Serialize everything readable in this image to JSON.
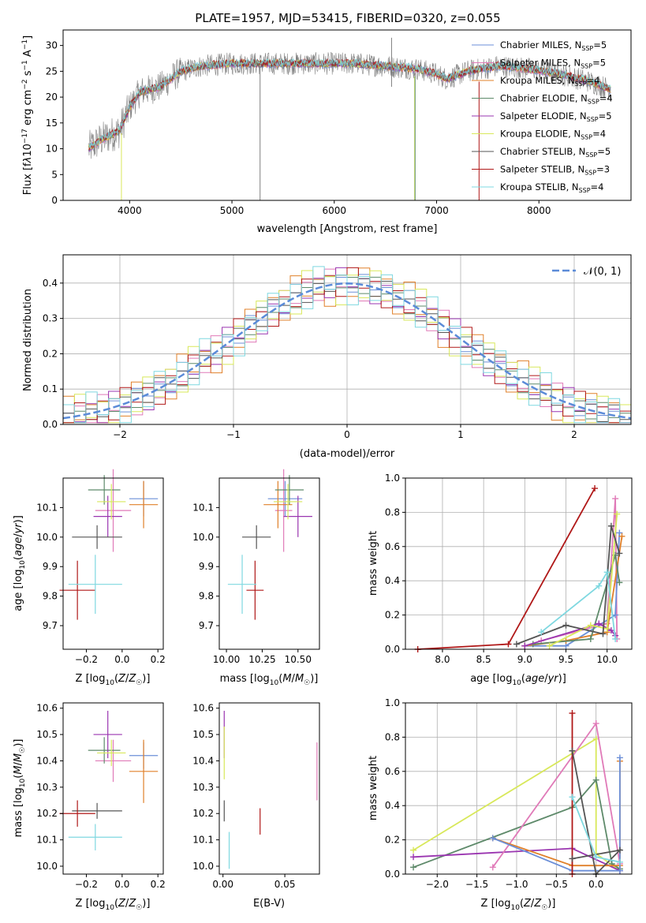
{
  "title": "PLATE=1957, MJD=53415, FIBERID=0320, z=0.055",
  "colors": {
    "chabrier_miles": "#6b8fd8",
    "salpeter_miles": "#e07ab8",
    "kroupa_miles": "#e0802a",
    "chabrier_elodie": "#5e8a6a",
    "salpeter_elodie": "#9a35b0",
    "kroupa_elodie": "#d8e85a",
    "chabrier_stelib": "#555555",
    "salpeter_stelib": "#b01818",
    "kroupa_stelib": "#7fd8e0"
  },
  "chart_data": [
    {
      "id": "spectrum",
      "type": "line",
      "xlabel": "wavelength [Angstrom, rest frame]",
      "ylabel": "Flux [f_λ10^-17 erg cm^-2 s^-1 A^-1]",
      "xlim": [
        3350,
        8900
      ],
      "ylim": [
        0,
        33
      ],
      "xticks": [
        4000,
        5000,
        6000,
        7000,
        8000
      ],
      "yticks": [
        0,
        5,
        10,
        15,
        20,
        25,
        30
      ],
      "legend_position": "top-right",
      "data_color": "#808080",
      "continuum": {
        "x": [
          3600,
          3700,
          3800,
          3900,
          4000,
          4100,
          4200,
          4300,
          4400,
          4500,
          4700,
          5000,
          5300,
          5600,
          5900,
          6200,
          6500,
          6800,
          7000,
          7100,
          7300,
          7600,
          7900,
          8200,
          8500,
          8700
        ],
        "y": [
          10,
          11.5,
          12.5,
          13.5,
          18,
          21,
          21.5,
          22,
          23.5,
          25,
          26,
          26.5,
          26.5,
          26.5,
          26.5,
          26.5,
          26,
          25.5,
          24.5,
          23.5,
          25,
          26,
          25.5,
          24.5,
          23,
          21.5
        ]
      },
      "series": [
        {
          "name": "Chabrier MILES, N_SSP=5",
          "label_main": "Chabrier MILES, N",
          "ssp": "5",
          "color": "#6b8fd8"
        },
        {
          "name": "Salpeter MILES, N_SSP=5",
          "label_main": "Salpeter MILES, N",
          "ssp": "5",
          "color": "#e07ab8"
        },
        {
          "name": "Kroupa MILES, N_SSP=4",
          "label_main": "Kroupa MILES, N",
          "ssp": "4",
          "color": "#e0802a"
        },
        {
          "name": "Chabrier ELODIE, N_SSP=4",
          "label_main": "Chabrier ELODIE, N",
          "ssp": "4",
          "color": "#5e8a6a"
        },
        {
          "name": "Salpeter ELODIE, N_SSP=5",
          "label_main": "Salpeter ELODIE, N",
          "ssp": "5",
          "color": "#9a35b0"
        },
        {
          "name": "Kroupa ELODIE, N_SSP=4",
          "label_main": "Kroupa ELODIE, N",
          "ssp": "4",
          "color": "#d8e85a"
        },
        {
          "name": "Chabrier STELIB, N_SSP=5",
          "label_main": "Chabrier STELIB, N",
          "ssp": "5",
          "color": "#555555"
        },
        {
          "name": "Salpeter STELIB, N_SSP=3",
          "label_main": "Salpeter STELIB, N",
          "ssp": "3",
          "color": "#b01818"
        },
        {
          "name": "Kroupa STELIB, N_SSP=4",
          "label_main": "Kroupa STELIB, N",
          "ssp": "4",
          "color": "#7fd8e0"
        }
      ],
      "spikes": [
        {
          "x": 3920,
          "y0": 0,
          "y1": 13,
          "color": "#d8e85a"
        },
        {
          "x": 5275,
          "y0": 0,
          "y1": 26,
          "color": "#808080"
        },
        {
          "x": 6560,
          "y0": 22,
          "y1": 31.5,
          "color": "#808080"
        },
        {
          "x": 6785,
          "y0": 0,
          "y1": 24,
          "color": "#d8e85a"
        },
        {
          "x": 6790,
          "y0": 0,
          "y1": 24,
          "color": "#5e8a6a"
        },
        {
          "x": 7415,
          "y0": 0,
          "y1": 23,
          "color": "#b01818"
        }
      ]
    },
    {
      "id": "residuals",
      "type": "bar",
      "xlabel": "(data-model)/error",
      "ylabel": "Normed distribution",
      "xlim": [
        -2.5,
        2.5
      ],
      "ylim": [
        0,
        0.48
      ],
      "xticks": [
        -2,
        -1,
        0,
        1,
        2
      ],
      "yticks": [
        0.0,
        0.1,
        0.2,
        0.3,
        0.4
      ],
      "grid": true,
      "bin_width": 0.1,
      "bin_start": -2.5,
      "legend_label": "𝒩(0, 1)",
      "legend_position": "top-right",
      "normal_color": "#5b8bd8",
      "hist_values": [
        0.03,
        0.035,
        0.045,
        0.05,
        0.055,
        0.06,
        0.07,
        0.075,
        0.085,
        0.09,
        0.1,
        0.11,
        0.12,
        0.13,
        0.145,
        0.16,
        0.175,
        0.19,
        0.205,
        0.22,
        0.24,
        0.255,
        0.27,
        0.285,
        0.3,
        0.315,
        0.33,
        0.345,
        0.355,
        0.365,
        0.375,
        0.385,
        0.39,
        0.395,
        0.4,
        0.4,
        0.4,
        0.395,
        0.39,
        0.385,
        0.375,
        0.365,
        0.355,
        0.34,
        0.33,
        0.315,
        0.3,
        0.285,
        0.27,
        0.255,
        0.24,
        0.22,
        0.205,
        0.19,
        0.175,
        0.16,
        0.145,
        0.13,
        0.12,
        0.11,
        0.1,
        0.09,
        0.08,
        0.07,
        0.065,
        0.055,
        0.05,
        0.045,
        0.04,
        0.035,
        0.03,
        0.028,
        0.025,
        0.022,
        0.02,
        0.018,
        0.016,
        0.014,
        0.012,
        0.01
      ],
      "hist_scatter": [
        0.02,
        -0.03,
        0.04,
        -0.02,
        0.03,
        -0.04,
        0.05,
        -0.01,
        0.02,
        -0.05
      ]
    },
    {
      "id": "age-vs-Z",
      "type": "scatter",
      "xlabel": "Z [log10(Z/Z☉)]",
      "ylabel": "age [log10(age/yr)]",
      "xlim": [
        -0.33,
        0.23
      ],
      "ylim": [
        9.62,
        10.2
      ],
      "xticks": [
        -0.2,
        0.0,
        0.2
      ],
      "xticklabels": [
        "−0.2",
        "0.0",
        "0.2"
      ],
      "yticks": [
        9.7,
        9.8,
        9.9,
        10.0,
        10.1
      ],
      "points": [
        {
          "color": "#6b8fd8",
          "x": 0.12,
          "y": 10.13,
          "xerr": 0.08,
          "yerr": 0.06
        },
        {
          "color": "#e07ab8",
          "x": -0.05,
          "y": 10.09,
          "xerr": 0.1,
          "yerr": 0.14
        },
        {
          "color": "#e0802a",
          "x": 0.12,
          "y": 10.11,
          "xerr": 0.08,
          "yerr": 0.08
        },
        {
          "color": "#5e8a6a",
          "x": -0.1,
          "y": 10.16,
          "xerr": 0.09,
          "yerr": 0.05
        },
        {
          "color": "#9a35b0",
          "x": -0.08,
          "y": 10.07,
          "xerr": 0.08,
          "yerr": 0.07
        },
        {
          "color": "#d8e85a",
          "x": -0.06,
          "y": 10.12,
          "xerr": 0.08,
          "yerr": 0.06
        },
        {
          "color": "#555555",
          "x": -0.14,
          "y": 10.0,
          "xerr": 0.14,
          "yerr": 0.04
        },
        {
          "color": "#b01818",
          "x": -0.25,
          "y": 9.82,
          "xerr": 0.1,
          "yerr": 0.1
        },
        {
          "color": "#7fd8e0",
          "x": -0.15,
          "y": 9.84,
          "xerr": 0.15,
          "yerr": 0.1
        }
      ]
    },
    {
      "id": "age-vs-mass",
      "type": "scatter",
      "xlabel": "mass [log10(M/M☉)]",
      "ylabel": "",
      "xlim": [
        9.95,
        10.65
      ],
      "ylim": [
        9.62,
        10.2
      ],
      "xticks": [
        10.0,
        10.25,
        10.5
      ],
      "xticklabels": [
        "10.00",
        "10.25",
        "10.50"
      ],
      "yticks": [
        9.7,
        9.8,
        9.9,
        10.0,
        10.1
      ],
      "points": [
        {
          "color": "#6b8fd8",
          "x": 10.41,
          "y": 10.13,
          "xerr": 0.12,
          "yerr": 0.06
        },
        {
          "color": "#e07ab8",
          "x": 10.4,
          "y": 10.09,
          "xerr": 0.06,
          "yerr": 0.14
        },
        {
          "color": "#e0802a",
          "x": 10.36,
          "y": 10.11,
          "xerr": 0.1,
          "yerr": 0.08
        },
        {
          "color": "#5e8a6a",
          "x": 10.44,
          "y": 10.16,
          "xerr": 0.1,
          "yerr": 0.05
        },
        {
          "color": "#9a35b0",
          "x": 10.5,
          "y": 10.07,
          "xerr": 0.1,
          "yerr": 0.07
        },
        {
          "color": "#d8e85a",
          "x": 10.43,
          "y": 10.12,
          "xerr": 0.1,
          "yerr": 0.06
        },
        {
          "color": "#555555",
          "x": 10.21,
          "y": 10.0,
          "xerr": 0.1,
          "yerr": 0.04
        },
        {
          "color": "#b01818",
          "x": 10.2,
          "y": 9.82,
          "xerr": 0.06,
          "yerr": 0.1
        },
        {
          "color": "#7fd8e0",
          "x": 10.11,
          "y": 9.84,
          "xerr": 0.1,
          "yerr": 0.1
        }
      ]
    },
    {
      "id": "mass-weight-vs-age",
      "type": "line",
      "xlabel": "age [log10(age/yr)]",
      "ylabel": "mass weight",
      "xlim": [
        7.55,
        10.3
      ],
      "ylim": [
        0,
        1.0
      ],
      "xticks": [
        8.0,
        8.5,
        9.0,
        9.5,
        10.0
      ],
      "xticklabels": [
        "8.0",
        "8.5",
        "9.0",
        "9.5",
        "10.0"
      ],
      "yticks": [
        0.0,
        0.2,
        0.4,
        0.6,
        0.8,
        1.0
      ],
      "grid": true,
      "series": [
        {
          "color": "#b01818",
          "x": [
            7.7,
            8.8,
            9.85
          ],
          "y": [
            0.0,
            0.03,
            0.94
          ]
        },
        {
          "color": "#e07ab8",
          "x": [
            9.2,
            10.0,
            10.1,
            10.12
          ],
          "y": [
            0.05,
            0.15,
            0.88,
            0.06
          ]
        },
        {
          "color": "#6b8fd8",
          "x": [
            9.0,
            9.5,
            10.1,
            10.15
          ],
          "y": [
            0.02,
            0.02,
            0.2,
            0.68
          ]
        },
        {
          "color": "#e0802a",
          "x": [
            9.0,
            9.5,
            10.0,
            10.18
          ],
          "y": [
            0.02,
            0.05,
            0.1,
            0.66
          ]
        },
        {
          "color": "#5e8a6a",
          "x": [
            9.1,
            9.8,
            10.1,
            10.15
          ],
          "y": [
            0.03,
            0.06,
            0.55,
            0.39
          ]
        },
        {
          "color": "#9a35b0",
          "x": [
            9.0,
            9.9,
            10.05,
            10.1
          ],
          "y": [
            0.02,
            0.15,
            0.11,
            0.08
          ]
        },
        {
          "color": "#d8e85a",
          "x": [
            9.3,
            9.8,
            10.0,
            10.12
          ],
          "y": [
            0.02,
            0.14,
            0.12,
            0.79
          ]
        },
        {
          "color": "#555555",
          "x": [
            8.9,
            9.5,
            9.95,
            10.05,
            10.15
          ],
          "y": [
            0.03,
            0.14,
            0.09,
            0.72,
            0.56
          ]
        },
        {
          "color": "#7fd8e0",
          "x": [
            9.2,
            9.9,
            10.0,
            10.1
          ],
          "y": [
            0.1,
            0.37,
            0.45,
            0.06
          ]
        }
      ]
    },
    {
      "id": "mass-vs-Z",
      "type": "scatter",
      "xlabel": "Z [log10(Z/Z☉)]",
      "ylabel": "mass [log10(M/M☉)]",
      "xlim": [
        -0.33,
        0.23
      ],
      "ylim": [
        9.97,
        10.62
      ],
      "xticks": [
        -0.2,
        0.0,
        0.2
      ],
      "xticklabels": [
        "−0.2",
        "0.0",
        "0.2"
      ],
      "yticks": [
        10.0,
        10.1,
        10.2,
        10.3,
        10.4,
        10.5,
        10.6
      ],
      "points": [
        {
          "color": "#6b8fd8",
          "x": 0.12,
          "y": 10.42,
          "xerr": 0.08,
          "yerr": 0.05
        },
        {
          "color": "#e07ab8",
          "x": -0.05,
          "y": 10.4,
          "xerr": 0.1,
          "yerr": 0.08
        },
        {
          "color": "#e0802a",
          "x": 0.12,
          "y": 10.36,
          "xerr": 0.08,
          "yerr": 0.12
        },
        {
          "color": "#5e8a6a",
          "x": -0.1,
          "y": 10.44,
          "xerr": 0.09,
          "yerr": 0.05
        },
        {
          "color": "#9a35b0",
          "x": -0.08,
          "y": 10.5,
          "xerr": 0.08,
          "yerr": 0.09
        },
        {
          "color": "#d8e85a",
          "x": -0.06,
          "y": 10.43,
          "xerr": 0.08,
          "yerr": 0.05
        },
        {
          "color": "#555555",
          "x": -0.14,
          "y": 10.21,
          "xerr": 0.14,
          "yerr": 0.03
        },
        {
          "color": "#b01818",
          "x": -0.25,
          "y": 10.2,
          "xerr": 0.1,
          "yerr": 0.05
        },
        {
          "color": "#7fd8e0",
          "x": -0.15,
          "y": 10.11,
          "xerr": 0.15,
          "yerr": 0.05
        }
      ]
    },
    {
      "id": "mass-vs-EBV",
      "type": "scatter",
      "xlabel": "E(B-V)",
      "ylabel": "",
      "xlim": [
        -0.003,
        0.078
      ],
      "ylim": [
        9.97,
        10.62
      ],
      "xticks": [
        0.0,
        0.05
      ],
      "xticklabels": [
        "0.00",
        "0.05"
      ],
      "yticks": [
        10.0,
        10.1,
        10.2,
        10.3,
        10.4,
        10.5,
        10.6
      ],
      "points": [
        {
          "color": "#9a35b0",
          "x": 0.001,
          "y": 10.5,
          "xerr": 0,
          "yerr": 0.09
        },
        {
          "color": "#d8e85a",
          "x": 0.001,
          "y": 10.43,
          "xerr": 0,
          "yerr": 0.1
        },
        {
          "color": "#555555",
          "x": 0.001,
          "y": 10.21,
          "xerr": 0,
          "yerr": 0.04
        },
        {
          "color": "#7fd8e0",
          "x": 0.005,
          "y": 10.06,
          "xerr": 0,
          "yerr": 0.07
        },
        {
          "color": "#b01818",
          "x": 0.03,
          "y": 10.17,
          "xerr": 0,
          "yerr": 0.05
        },
        {
          "color": "#e07ab8",
          "x": 0.076,
          "y": 10.36,
          "xerr": 0,
          "yerr": 0.11
        }
      ]
    },
    {
      "id": "mass-weight-vs-Z",
      "type": "line",
      "xlabel": "Z [log10(Z/Z☉)]",
      "ylabel": "mass weight",
      "xlim": [
        -2.4,
        0.45
      ],
      "ylim": [
        0,
        1.0
      ],
      "xticks": [
        -2.0,
        -1.5,
        -1.0,
        -0.5,
        0.0
      ],
      "xticklabels": [
        "−2.0",
        "−1.5",
        "−1.0",
        "−0.5",
        "0.0"
      ],
      "yticks": [
        0.0,
        0.2,
        0.4,
        0.6,
        0.8,
        1.0
      ],
      "grid": true,
      "series": [
        {
          "color": "#d8e85a",
          "x": [
            -2.3,
            0.0,
            0.0,
            0.3
          ],
          "y": [
            0.14,
            0.79,
            0.12,
            0.02
          ]
        },
        {
          "color": "#5e8a6a",
          "x": [
            -2.3,
            -0.3,
            0.0,
            0.2,
            0.3
          ],
          "y": [
            0.04,
            0.39,
            0.55,
            0.06,
            0.03
          ]
        },
        {
          "color": "#9a35b0",
          "x": [
            -2.3,
            -0.3,
            0.3
          ],
          "y": [
            0.1,
            0.15,
            0.02
          ]
        },
        {
          "color": "#e07ab8",
          "x": [
            -1.3,
            0.0,
            0.3,
            0.3
          ],
          "y": [
            0.04,
            0.88,
            0.06,
            0.02
          ]
        },
        {
          "color": "#e0802a",
          "x": [
            -1.3,
            -0.3,
            0.3,
            0.3
          ],
          "y": [
            0.21,
            0.05,
            0.05,
            0.66
          ]
        },
        {
          "color": "#6b8fd8",
          "x": [
            -1.3,
            -0.3,
            0.3,
            0.3
          ],
          "y": [
            0.21,
            0.02,
            0.02,
            0.68
          ]
        },
        {
          "color": "#b01818",
          "x": [
            -0.3,
            -0.3
          ],
          "y": [
            0.0,
            0.94
          ]
        },
        {
          "color": "#555555",
          "x": [
            -0.3,
            0.0,
            0.3,
            -0.3
          ],
          "y": [
            0.72,
            0.0,
            0.14,
            0.09
          ]
        },
        {
          "color": "#7fd8e0",
          "x": [
            -0.3,
            0.0,
            0.3
          ],
          "y": [
            0.45,
            0.1,
            0.07
          ]
        }
      ]
    }
  ]
}
